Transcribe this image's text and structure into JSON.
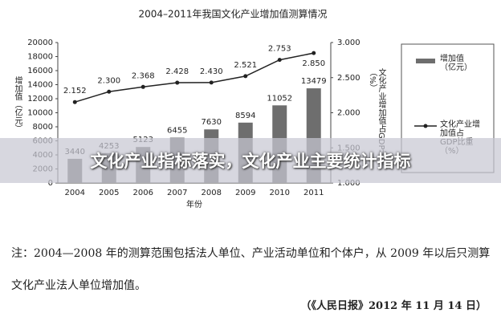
{
  "chart_data": {
    "type": "bar",
    "title": "2004–2011年我国文化产业增加值测算情况",
    "categories": [
      "2004",
      "2005",
      "2006",
      "2007",
      "2008",
      "2009",
      "2010",
      "2011"
    ],
    "x_label": "年份",
    "y_label": "增加值（亿元）",
    "y2_label": "文化产业增加值占GDP比重（%）",
    "series": [
      {
        "name": "增加值（亿元）",
        "color": "#6e6e6e",
        "values": [
          3440,
          4253,
          5123,
          6455,
          7630,
          8594,
          11052,
          13479
        ]
      },
      {
        "name": "文化产业增加值占GDP比重（%）",
        "type": "line",
        "axis": "y2",
        "color": "#222222",
        "values": [
          2.152,
          2.3,
          2.368,
          2.428,
          2.43,
          2.521,
          2.753,
          2.85
        ],
        "value_labels": [
          "2.152",
          "2.300",
          "2.368",
          "2.428",
          "2.430",
          "2.521",
          "2.753",
          "2.850"
        ]
      }
    ],
    "ylim": [
      0,
      20000
    ],
    "yticks": [
      0,
      2000,
      4000,
      6000,
      8000,
      10000,
      12000,
      14000,
      16000,
      18000,
      20000
    ],
    "y2lim": [
      1,
      3
    ],
    "y2ticks": [
      {
        "value": 1,
        "label": "1.000"
      },
      {
        "value": 1.5,
        "label": "1.500"
      },
      {
        "value": 2,
        "label": "2.000"
      },
      {
        "value": 2.5,
        "label": "2.500"
      },
      {
        "value": 3,
        "label": "3.000"
      }
    ]
  },
  "banner": "文化产业指标落实，文化产业主要统计指标",
  "note": "注：2004—2008 年的测算范围包括法人单位、产业活动单位和个体户，从 2009 年以后只测算文化产业法人单位增加值。",
  "source": "（《人民日报》2012 年 11 月 14 日）"
}
